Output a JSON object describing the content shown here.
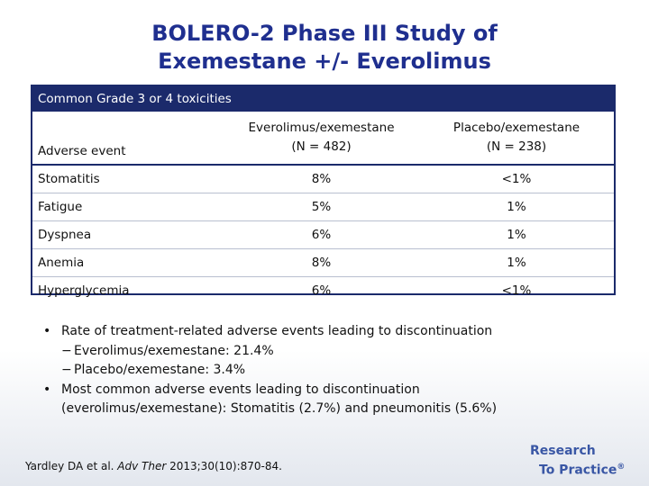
{
  "title": {
    "line1": "BOLERO-2 Phase III Study of",
    "line2": "Exemestane +/- Everolimus"
  },
  "table": {
    "caption": "Common Grade 3 or 4 toxicities",
    "headers": {
      "adverse_event": "Adverse event",
      "col1_line1": "Everolimus/exemestane",
      "col1_line2": "(N = 482)",
      "col2_line1": "Placebo/exemestane",
      "col2_line2": "(N = 238)"
    },
    "rows": [
      {
        "event": "Stomatitis",
        "evero": "8%",
        "placebo": "<1%"
      },
      {
        "event": "Fatigue",
        "evero": "5%",
        "placebo": "1%"
      },
      {
        "event": "Dyspnea",
        "evero": "6%",
        "placebo": "1%"
      },
      {
        "event": "Anemia",
        "evero": "8%",
        "placebo": "1%"
      },
      {
        "event": "Hyperglycemia",
        "evero": "6%",
        "placebo": "<1%"
      }
    ]
  },
  "bullets": {
    "b1": "Rate of treatment-related adverse events leading to discontinuation",
    "b1_sub1": "Everolimus/exemestane: 21.4%",
    "b1_sub2": "Placebo/exemestane: 3.4%",
    "b2_line1": "Most common adverse events leading to discontinuation",
    "b2_line2": "(everolimus/exemestane): Stomatitis (2.7%) and pneumonitis (5.6%)",
    "bullet_char": "•",
    "dash_char": "−"
  },
  "citation": {
    "authors": "Yardley DA et al. ",
    "journal": "Adv Ther",
    "ref": " 2013;30(10):870-84."
  },
  "logo": {
    "line1": "Research",
    "line2": "To Practice",
    "mark": "®"
  }
}
